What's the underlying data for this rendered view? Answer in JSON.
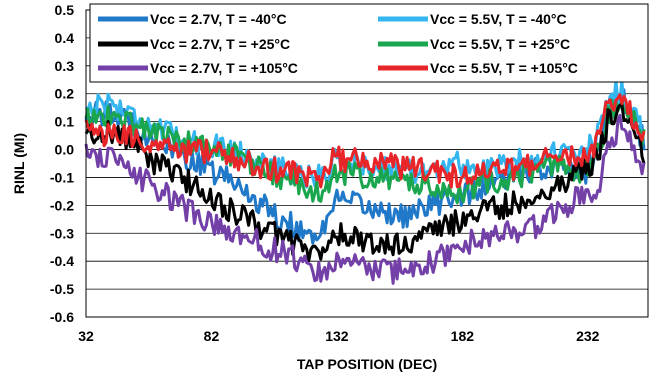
{
  "chart_data": {
    "type": "line",
    "xlabel": "TAP POSITION (DEC)",
    "ylabel": "RINL (MI)",
    "xlim": [
      32,
      256
    ],
    "ylim": [
      -0.6,
      0.5
    ],
    "xticks": [
      "32",
      "82",
      "132",
      "182",
      "232"
    ],
    "yticks": [
      "0.5",
      "0.4",
      "0.3",
      "0.2",
      "0.1",
      "0.0",
      "-0.1",
      "-0.2",
      "-0.3",
      "-0.4",
      "-0.5",
      "-0.6"
    ],
    "grid": "horizontal",
    "legend_position": "top",
    "series": [
      {
        "name": "Vcc = 2.7V, T = -40°C",
        "color": "#1f78c8",
        "x": [
          32,
          40,
          50,
          60,
          70,
          80,
          90,
          100,
          110,
          120,
          127,
          130,
          140,
          150,
          160,
          170,
          180,
          190,
          200,
          210,
          220,
          230,
          236,
          240,
          245,
          250,
          255
        ],
        "y": [
          0.12,
          0.13,
          0.1,
          0.03,
          -0.02,
          -0.07,
          -0.11,
          -0.18,
          -0.25,
          -0.3,
          -0.3,
          -0.18,
          -0.2,
          -0.22,
          -0.24,
          -0.2,
          -0.16,
          -0.14,
          -0.1,
          -0.08,
          -0.05,
          -0.1,
          0.0,
          0.15,
          0.2,
          0.1,
          0.02
        ]
      },
      {
        "name": "Vcc = 5.5V, T = -40°C",
        "color": "#33b5f0",
        "x": [
          32,
          40,
          50,
          60,
          70,
          80,
          90,
          100,
          110,
          120,
          127,
          130,
          140,
          150,
          160,
          170,
          180,
          190,
          200,
          210,
          220,
          230,
          236,
          240,
          245,
          250,
          255
        ],
        "y": [
          0.15,
          0.17,
          0.13,
          0.08,
          0.03,
          0.02,
          0.0,
          -0.04,
          -0.07,
          -0.09,
          -0.1,
          -0.04,
          -0.06,
          -0.06,
          -0.08,
          -0.07,
          -0.05,
          -0.08,
          -0.05,
          -0.03,
          -0.01,
          -0.03,
          0.05,
          0.18,
          0.22,
          0.12,
          0.05
        ]
      },
      {
        "name": "Vcc = 2.7V, T = +25°C",
        "color": "#000000",
        "x": [
          32,
          40,
          50,
          60,
          70,
          80,
          90,
          100,
          110,
          120,
          127,
          130,
          140,
          150,
          160,
          170,
          180,
          190,
          200,
          210,
          220,
          230,
          236,
          240,
          245,
          250,
          255
        ],
        "y": [
          0.05,
          0.07,
          0.03,
          -0.05,
          -0.1,
          -0.16,
          -0.22,
          -0.27,
          -0.31,
          -0.36,
          -0.38,
          -0.3,
          -0.32,
          -0.35,
          -0.33,
          -0.3,
          -0.26,
          -0.22,
          -0.2,
          -0.18,
          -0.12,
          -0.08,
          -0.03,
          0.1,
          0.15,
          0.08,
          -0.02
        ]
      },
      {
        "name": "Vcc = 5.5V, T = +25°C",
        "color": "#1aa64e",
        "x": [
          32,
          40,
          50,
          60,
          70,
          80,
          90,
          100,
          110,
          120,
          127,
          130,
          140,
          150,
          160,
          170,
          180,
          190,
          200,
          210,
          220,
          230,
          236,
          240,
          245,
          250,
          255
        ],
        "y": [
          0.1,
          0.12,
          0.1,
          0.06,
          0.03,
          0.01,
          -0.02,
          -0.06,
          -0.1,
          -0.13,
          -0.17,
          -0.08,
          -0.09,
          -0.1,
          -0.12,
          -0.13,
          -0.15,
          -0.12,
          -0.1,
          -0.08,
          -0.06,
          -0.08,
          -0.02,
          0.12,
          0.18,
          0.1,
          0.02
        ]
      },
      {
        "name": "Vcc = 2.7V, T = +105°C",
        "color": "#7340a8",
        "x": [
          32,
          40,
          50,
          60,
          70,
          80,
          90,
          100,
          110,
          120,
          127,
          130,
          140,
          150,
          160,
          170,
          180,
          190,
          200,
          210,
          220,
          230,
          236,
          240,
          245,
          250,
          255
        ],
        "y": [
          0.0,
          -0.03,
          -0.08,
          -0.14,
          -0.2,
          -0.26,
          -0.3,
          -0.33,
          -0.37,
          -0.41,
          -0.45,
          -0.4,
          -0.42,
          -0.44,
          -0.43,
          -0.4,
          -0.35,
          -0.32,
          -0.3,
          -0.28,
          -0.22,
          -0.16,
          -0.14,
          0.0,
          0.1,
          0.02,
          -0.1
        ]
      },
      {
        "name": "Vcc = 5.5V, T = +105°C",
        "color": "#e8262a",
        "x": [
          32,
          40,
          50,
          60,
          70,
          80,
          90,
          100,
          110,
          120,
          127,
          130,
          140,
          150,
          160,
          170,
          180,
          190,
          200,
          210,
          220,
          230,
          236,
          240,
          245,
          250,
          255
        ],
        "y": [
          0.08,
          0.05,
          0.04,
          0.02,
          0.0,
          -0.01,
          -0.03,
          -0.06,
          -0.08,
          -0.09,
          -0.1,
          -0.03,
          -0.04,
          -0.05,
          -0.07,
          -0.08,
          -0.1,
          -0.08,
          -0.07,
          -0.05,
          -0.03,
          -0.02,
          0.03,
          0.15,
          0.21,
          0.12,
          0.02
        ]
      }
    ]
  }
}
